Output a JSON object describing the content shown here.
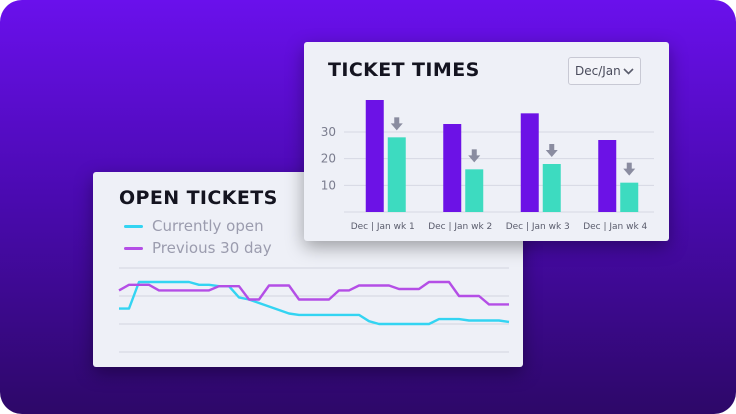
{
  "colors": {
    "background_top": "#6a10ec",
    "background_bottom": "#2d0868",
    "purple": "#6c12e6",
    "teal": "#3ddbc0",
    "cyan_line": "#33d4f2",
    "violet_line": "#b44ee6",
    "arrow": "#8a8ca0"
  },
  "open_tickets": {
    "title": "OPEN TICKETS",
    "legend": [
      {
        "label": "Currently open",
        "color": "#33d4f2"
      },
      {
        "label": "Previous 30 day",
        "color": "#b44ee6"
      }
    ]
  },
  "ticket_times": {
    "title": "TICKET TIMES",
    "period_select": {
      "value": "Dec/Jan"
    }
  },
  "chart_data": [
    {
      "type": "bar",
      "title": "TICKET TIMES",
      "categories": [
        "Dec | Jan wk 1",
        "Dec | Jan wk 2",
        "Dec | Jan wk 3",
        "Dec | Jan wk 4"
      ],
      "series": [
        {
          "color": "#6c12e6",
          "values": [
            42,
            33,
            37,
            27
          ]
        },
        {
          "color": "#3ddbc0",
          "values": [
            28,
            16,
            18,
            11
          ]
        }
      ],
      "yticks": [
        10,
        20,
        30
      ],
      "ylim": [
        0,
        45
      ],
      "grid": true,
      "annotations": "down-arrow icon above each second bar"
    },
    {
      "type": "line",
      "title": "OPEN TICKETS",
      "x": [
        1,
        2,
        3,
        4,
        5,
        6,
        7,
        8,
        9,
        10,
        11,
        12,
        13,
        14,
        15,
        16,
        17,
        18,
        19,
        20,
        21,
        22,
        23,
        24,
        25,
        26,
        27,
        28,
        29,
        30,
        31,
        32,
        33,
        34,
        35,
        36,
        37,
        38,
        39,
        40
      ],
      "series": [
        {
          "name": "Currently open",
          "color": "#33d4f2",
          "values": [
            62,
            62,
            100,
            100,
            100,
            100,
            100,
            100,
            96,
            96,
            94,
            94,
            78,
            75,
            70,
            65,
            60,
            55,
            53,
            53,
            53,
            53,
            53,
            53,
            53,
            44,
            40,
            40,
            40,
            40,
            40,
            40,
            47,
            47,
            47,
            45,
            45,
            45,
            45,
            43
          ]
        },
        {
          "name": "Previous 30 day",
          "color": "#b44ee6",
          "values": [
            88,
            96,
            96,
            96,
            88,
            88,
            88,
            88,
            88,
            88,
            94,
            94,
            94,
            75,
            75,
            95,
            95,
            95,
            75,
            75,
            75,
            75,
            88,
            88,
            95,
            95,
            95,
            95,
            90,
            90,
            90,
            100,
            100,
            100,
            80,
            80,
            80,
            68,
            68,
            68
          ]
        }
      ],
      "ylim": [
        0,
        120
      ],
      "grid": true
    }
  ]
}
